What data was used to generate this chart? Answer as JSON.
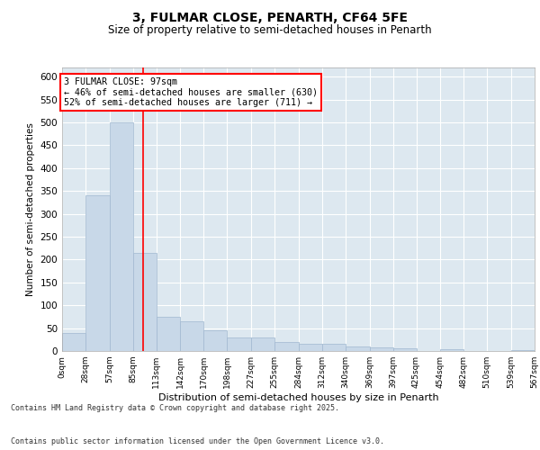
{
  "title_line1": "3, FULMAR CLOSE, PENARTH, CF64 5FE",
  "title_line2": "Size of property relative to semi-detached houses in Penarth",
  "xlabel": "Distribution of semi-detached houses by size in Penarth",
  "ylabel": "Number of semi-detached properties",
  "bar_color": "#c8d8e8",
  "bar_edge_color": "#a0b8d0",
  "background_color": "#dde8f0",
  "grid_color": "#ffffff",
  "property_size": 97,
  "bin_edges": [
    0,
    28,
    57,
    85,
    113,
    142,
    170,
    198,
    227,
    255,
    284,
    312,
    340,
    369,
    397,
    425,
    454,
    482,
    510,
    539,
    567
  ],
  "counts": [
    40,
    340,
    500,
    215,
    75,
    65,
    45,
    30,
    30,
    20,
    15,
    15,
    10,
    8,
    5,
    0,
    3,
    0,
    0,
    1
  ],
  "annotation_title": "3 FULMAR CLOSE: 97sqm",
  "annotation_line1": "← 46% of semi-detached houses are smaller (630)",
  "annotation_line2": "52% of semi-detached houses are larger (711) →",
  "footer_line1": "Contains HM Land Registry data © Crown copyright and database right 2025.",
  "footer_line2": "Contains public sector information licensed under the Open Government Licence v3.0.",
  "ylim": [
    0,
    620
  ],
  "yticks": [
    0,
    50,
    100,
    150,
    200,
    250,
    300,
    350,
    400,
    450,
    500,
    550,
    600
  ]
}
